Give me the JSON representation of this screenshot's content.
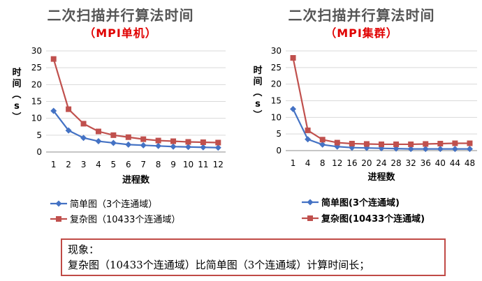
{
  "chart_data": [
    {
      "type": "line",
      "title": "二次扫描并行算法时间",
      "subtitle": "（MPI单机）",
      "xlabel": "进程数",
      "ylabel": "时间（s）",
      "ylabel_chars": [
        "时",
        "间",
        "（",
        "s",
        "）"
      ],
      "ylim": [
        0,
        30
      ],
      "yticks": [
        0,
        5,
        10,
        15,
        20,
        25,
        30
      ],
      "categories": [
        "1",
        "2",
        "3",
        "4",
        "5",
        "6",
        "7",
        "8",
        "9",
        "10",
        "11",
        "12"
      ],
      "legend_position": "bottom-left",
      "grid": true,
      "series": [
        {
          "name": "简单图（3个连通域）",
          "color": "#4472C4",
          "marker": "diamond",
          "values": [
            12.2,
            6.4,
            4.2,
            3.2,
            2.7,
            2.2,
            2.0,
            1.8,
            1.6,
            1.5,
            1.4,
            1.3
          ]
        },
        {
          "name": "复杂图（10433个连通域）",
          "color": "#C0504D",
          "marker": "square",
          "values": [
            27.6,
            12.7,
            8.4,
            6.1,
            5.0,
            4.4,
            3.8,
            3.4,
            3.2,
            3.0,
            2.9,
            2.8
          ]
        }
      ]
    },
    {
      "type": "line",
      "title": "二次扫描并行算法时间",
      "subtitle": "（MPI集群）",
      "xlabel": "进程数",
      "ylabel": "时间（s）",
      "ylabel_chars": [
        "时",
        "间",
        "（",
        "s",
        "）"
      ],
      "ylim": [
        0,
        30
      ],
      "yticks": [
        0,
        5,
        10,
        15,
        20,
        25,
        30
      ],
      "categories": [
        "1",
        "4",
        "8",
        "12",
        "16",
        "20",
        "24",
        "28",
        "32",
        "36",
        "40",
        "44",
        "48"
      ],
      "legend_position": "bottom-left",
      "grid": true,
      "series": [
        {
          "name": "简单图(3个连通域)",
          "color": "#4472C4",
          "marker": "diamond",
          "values": [
            12.5,
            3.4,
            1.8,
            1.2,
            0.9,
            0.8,
            0.7,
            0.6,
            0.5,
            0.5,
            0.5,
            0.5,
            0.5
          ]
        },
        {
          "name": "复杂图(10433个连通域)",
          "color": "#C0504D",
          "marker": "square",
          "values": [
            27.9,
            6.1,
            3.3,
            2.4,
            2.1,
            2.0,
            1.9,
            1.9,
            1.9,
            2.0,
            2.1,
            2.2,
            2.2
          ]
        }
      ]
    }
  ],
  "observation": {
    "heading": "现象：",
    "text": "复杂图（10433个连通域）比简单图（3个连通域）计算时间长；"
  }
}
